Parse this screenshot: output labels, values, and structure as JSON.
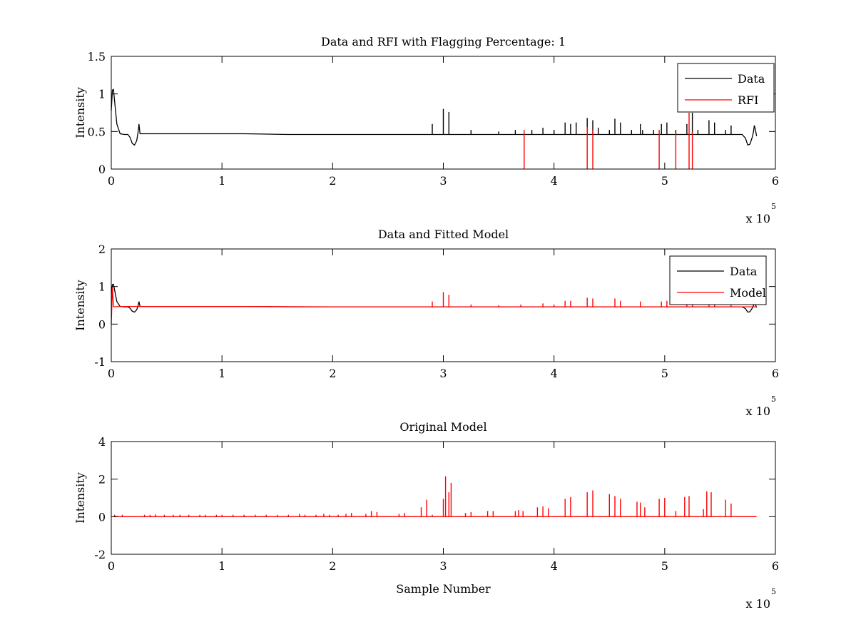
{
  "figure": {
    "background": "#ffffff",
    "axis_color": "#000000"
  },
  "chart_data": [
    {
      "type": "line",
      "title": "Data and RFI with Flagging Percentage: 1",
      "xlabel": "",
      "ylabel": "Intensity",
      "xlim": [
        0,
        600000
      ],
      "ylim": [
        0,
        1.5
      ],
      "xticks": [
        0,
        100000,
        200000,
        300000,
        400000,
        500000,
        600000
      ],
      "xtick_labels": [
        "0",
        "1",
        "2",
        "3",
        "4",
        "5",
        "6"
      ],
      "yticks": [
        0,
        0.5,
        1,
        1.5
      ],
      "ytick_labels": [
        "0",
        "0.5",
        "1",
        "1.5"
      ],
      "x_multiplier": {
        "base": "x 10",
        "exponent": "5"
      },
      "legend": {
        "position": "top-right",
        "entries": [
          "Data",
          "RFI"
        ]
      },
      "grid": false,
      "series": [
        {
          "name": "Data",
          "color": "#000000",
          "baseline": 0.46,
          "points": [
            [
              0,
              0.78
            ],
            [
              1000,
              1.05
            ],
            [
              2000,
              1.06
            ],
            [
              3000,
              0.9
            ],
            [
              5000,
              0.6
            ],
            [
              8000,
              0.47
            ],
            [
              12000,
              0.46
            ],
            [
              15000,
              0.46
            ],
            [
              17000,
              0.42
            ],
            [
              19000,
              0.34
            ],
            [
              21000,
              0.32
            ],
            [
              23000,
              0.38
            ],
            [
              24500,
              0.52
            ],
            [
              25000,
              0.6
            ],
            [
              26000,
              0.47
            ],
            [
              28000,
              0.47
            ],
            [
              40000,
              0.47
            ],
            [
              80000,
              0.47
            ],
            [
              120000,
              0.47
            ],
            [
              160000,
              0.46
            ],
            [
              200000,
              0.46
            ],
            [
              240000,
              0.46
            ],
            [
              280000,
              0.46
            ],
            [
              320000,
              0.46
            ],
            [
              360000,
              0.46
            ],
            [
              400000,
              0.46
            ],
            [
              440000,
              0.46
            ],
            [
              480000,
              0.46
            ],
            [
              520000,
              0.46
            ],
            [
              560000,
              0.46
            ],
            [
              570000,
              0.46
            ],
            [
              573000,
              0.41
            ],
            [
              575000,
              0.32
            ],
            [
              577000,
              0.33
            ],
            [
              579000,
              0.42
            ],
            [
              580000,
              0.48
            ],
            [
              581000,
              0.58
            ],
            [
              582000,
              0.52
            ],
            [
              583000,
              0.44
            ]
          ],
          "spikes": [
            [
              290000,
              0.6
            ],
            [
              300000,
              0.8
            ],
            [
              305000,
              0.76
            ],
            [
              325000,
              0.52
            ],
            [
              350000,
              0.5
            ],
            [
              365000,
              0.52
            ],
            [
              380000,
              0.52
            ],
            [
              390000,
              0.55
            ],
            [
              400000,
              0.52
            ],
            [
              410000,
              0.62
            ],
            [
              415000,
              0.6
            ],
            [
              420000,
              0.62
            ],
            [
              430000,
              0.68
            ],
            [
              435000,
              0.65
            ],
            [
              440000,
              0.55
            ],
            [
              450000,
              0.52
            ],
            [
              455000,
              0.67
            ],
            [
              460000,
              0.62
            ],
            [
              470000,
              0.52
            ],
            [
              478000,
              0.6
            ],
            [
              480000,
              0.52
            ],
            [
              490000,
              0.52
            ],
            [
              497000,
              0.6
            ],
            [
              502000,
              0.62
            ],
            [
              510000,
              0.52
            ],
            [
              520000,
              0.6
            ],
            [
              525000,
              0.75
            ],
            [
              530000,
              0.52
            ],
            [
              540000,
              0.65
            ],
            [
              545000,
              0.62
            ],
            [
              555000,
              0.52
            ],
            [
              560000,
              0.58
            ]
          ]
        },
        {
          "name": "RFI",
          "color": "#ff0000",
          "spikes": [
            [
              373000,
              0.52
            ],
            [
              430000,
              0.56
            ],
            [
              435000,
              0.52
            ],
            [
              495000,
              0.52
            ],
            [
              510000,
              0.48
            ],
            [
              522000,
              0.75
            ],
            [
              525000,
              0.5
            ]
          ]
        }
      ]
    },
    {
      "type": "line",
      "title": "Data and Fitted Model",
      "xlabel": "",
      "ylabel": "Intensity",
      "xlim": [
        0,
        600000
      ],
      "ylim": [
        -1,
        2
      ],
      "xticks": [
        0,
        100000,
        200000,
        300000,
        400000,
        500000,
        600000
      ],
      "xtick_labels": [
        "0",
        "1",
        "2",
        "3",
        "4",
        "5",
        "6"
      ],
      "yticks": [
        -1,
        0,
        1,
        2
      ],
      "ytick_labels": [
        "-1",
        "0",
        "1",
        "2"
      ],
      "x_multiplier": {
        "base": "x 10",
        "exponent": "5"
      },
      "legend": {
        "position": "top-right",
        "entries": [
          "Data",
          "Model"
        ]
      },
      "grid": false,
      "series": [
        {
          "name": "Data",
          "color": "#000000",
          "baseline": 0.46,
          "points": [
            [
              0,
              0.78
            ],
            [
              1000,
              1.05
            ],
            [
              2000,
              1.06
            ],
            [
              3000,
              0.9
            ],
            [
              5000,
              0.6
            ],
            [
              8000,
              0.47
            ],
            [
              12000,
              0.46
            ],
            [
              15000,
              0.46
            ],
            [
              17000,
              0.42
            ],
            [
              19000,
              0.34
            ],
            [
              21000,
              0.32
            ],
            [
              23000,
              0.38
            ],
            [
              24500,
              0.52
            ],
            [
              25000,
              0.6
            ],
            [
              26000,
              0.47
            ],
            [
              28000,
              0.47
            ],
            [
              40000,
              0.47
            ],
            [
              80000,
              0.47
            ],
            [
              120000,
              0.47
            ],
            [
              160000,
              0.46
            ],
            [
              200000,
              0.46
            ],
            [
              240000,
              0.46
            ],
            [
              280000,
              0.46
            ],
            [
              320000,
              0.46
            ],
            [
              360000,
              0.46
            ],
            [
              400000,
              0.46
            ],
            [
              440000,
              0.46
            ],
            [
              480000,
              0.46
            ],
            [
              520000,
              0.46
            ],
            [
              560000,
              0.46
            ],
            [
              570000,
              0.46
            ],
            [
              573000,
              0.41
            ],
            [
              575000,
              0.32
            ],
            [
              577000,
              0.33
            ],
            [
              579000,
              0.42
            ],
            [
              580000,
              0.48
            ],
            [
              581000,
              0.58
            ],
            [
              582000,
              0.52
            ],
            [
              583000,
              0.44
            ]
          ]
        },
        {
          "name": "Model",
          "color": "#ff0000",
          "baseline": 0.45,
          "points": [
            [
              0,
              0.0
            ],
            [
              1000,
              0.98
            ],
            [
              2000,
              0.46
            ],
            [
              8000,
              0.47
            ],
            [
              40000,
              0.47
            ],
            [
              120000,
              0.47
            ],
            [
              200000,
              0.46
            ],
            [
              280000,
              0.46
            ],
            [
              360000,
              0.46
            ],
            [
              440000,
              0.46
            ],
            [
              520000,
              0.46
            ],
            [
              575000,
              0.46
            ],
            [
              583000,
              0.46
            ]
          ],
          "spikes": [
            [
              290000,
              0.6
            ],
            [
              300000,
              0.85
            ],
            [
              305000,
              0.78
            ],
            [
              325000,
              0.52
            ],
            [
              350000,
              0.5
            ],
            [
              370000,
              0.52
            ],
            [
              390000,
              0.55
            ],
            [
              400000,
              0.52
            ],
            [
              410000,
              0.62
            ],
            [
              415000,
              0.62
            ],
            [
              430000,
              0.7
            ],
            [
              435000,
              0.68
            ],
            [
              455000,
              0.68
            ],
            [
              460000,
              0.62
            ],
            [
              478000,
              0.6
            ],
            [
              497000,
              0.6
            ],
            [
              502000,
              0.62
            ],
            [
              520000,
              0.6
            ],
            [
              525000,
              0.65
            ],
            [
              540000,
              0.62
            ],
            [
              545000,
              0.58
            ],
            [
              560000,
              0.55
            ]
          ]
        }
      ]
    },
    {
      "type": "line",
      "title": "Original Model",
      "xlabel": "Sample Number",
      "ylabel": "Intensity",
      "xlim": [
        0,
        600000
      ],
      "ylim": [
        -2,
        4
      ],
      "xticks": [
        0,
        100000,
        200000,
        300000,
        400000,
        500000,
        600000
      ],
      "xtick_labels": [
        "0",
        "1",
        "2",
        "3",
        "4",
        "5",
        "6"
      ],
      "yticks": [
        -2,
        0,
        2,
        4
      ],
      "ytick_labels": [
        "-2",
        "0",
        "2",
        "4"
      ],
      "x_multiplier": {
        "base": "x 10",
        "exponent": "5"
      },
      "legend": null,
      "grid": false,
      "series": [
        {
          "name": "",
          "color": "#ff0000",
          "baseline": 0.0,
          "points": [
            [
              2000,
              0.0
            ],
            [
              583000,
              0.0
            ]
          ],
          "spikes": [
            [
              3000,
              0.1
            ],
            [
              10000,
              0.1
            ],
            [
              30000,
              0.1
            ],
            [
              35000,
              0.1
            ],
            [
              40000,
              0.12
            ],
            [
              48000,
              0.1
            ],
            [
              56000,
              0.1
            ],
            [
              62000,
              0.1
            ],
            [
              70000,
              0.1
            ],
            [
              80000,
              0.1
            ],
            [
              85000,
              0.1
            ],
            [
              95000,
              0.1
            ],
            [
              100000,
              0.1
            ],
            [
              110000,
              0.1
            ],
            [
              120000,
              0.1
            ],
            [
              130000,
              0.1
            ],
            [
              140000,
              0.1
            ],
            [
              150000,
              0.1
            ],
            [
              160000,
              0.1
            ],
            [
              170000,
              0.15
            ],
            [
              175000,
              0.1
            ],
            [
              185000,
              0.1
            ],
            [
              192000,
              0.15
            ],
            [
              197000,
              0.1
            ],
            [
              205000,
              0.1
            ],
            [
              212000,
              0.15
            ],
            [
              217000,
              0.2
            ],
            [
              230000,
              0.15
            ],
            [
              235000,
              0.3
            ],
            [
              240000,
              0.25
            ],
            [
              260000,
              0.15
            ],
            [
              265000,
              0.2
            ],
            [
              280000,
              0.5
            ],
            [
              285000,
              0.9
            ],
            [
              290000,
              0.1
            ],
            [
              300000,
              0.95
            ],
            [
              302000,
              2.15
            ],
            [
              305000,
              1.3
            ],
            [
              307000,
              1.8
            ],
            [
              320000,
              0.2
            ],
            [
              325000,
              0.25
            ],
            [
              340000,
              0.3
            ],
            [
              345000,
              0.3
            ],
            [
              365000,
              0.3
            ],
            [
              368000,
              0.35
            ],
            [
              372000,
              0.3
            ],
            [
              385000,
              0.5
            ],
            [
              390000,
              0.55
            ],
            [
              395000,
              0.45
            ],
            [
              410000,
              0.95
            ],
            [
              415000,
              1.05
            ],
            [
              430000,
              1.3
            ],
            [
              435000,
              1.4
            ],
            [
              450000,
              1.2
            ],
            [
              455000,
              1.1
            ],
            [
              460000,
              0.95
            ],
            [
              475000,
              0.8
            ],
            [
              478000,
              0.75
            ],
            [
              482000,
              0.5
            ],
            [
              495000,
              0.95
            ],
            [
              500000,
              1.0
            ],
            [
              510000,
              0.3
            ],
            [
              518000,
              1.05
            ],
            [
              522000,
              1.1
            ],
            [
              535000,
              0.4
            ],
            [
              538000,
              1.35
            ],
            [
              542000,
              1.3
            ],
            [
              555000,
              0.9
            ],
            [
              560000,
              0.7
            ]
          ]
        }
      ]
    }
  ]
}
